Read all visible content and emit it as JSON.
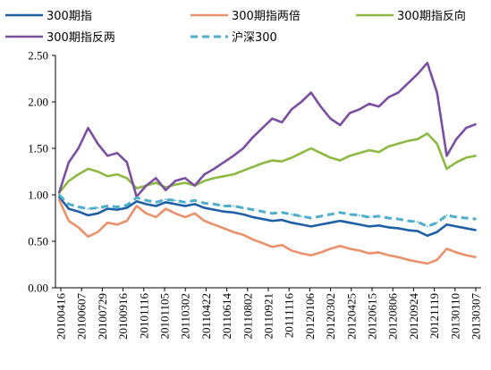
{
  "chart_data": {
    "type": "line",
    "title": "",
    "xlabel": "",
    "ylabel": "",
    "ylim": [
      0,
      2.5
    ],
    "yticks": [
      "0.00",
      "0.50",
      "1.00",
      "1.50",
      "2.00",
      "2.50"
    ],
    "grid": false,
    "legend_position": "top",
    "x_labels": [
      "20100416",
      "20100607",
      "20100729",
      "20100916",
      "20101116",
      "20101105",
      "20110302",
      "20110422",
      "20110614",
      "20110802",
      "20110921",
      "20111116",
      "20120106",
      "20120302",
      "20120425",
      "20120615",
      "20120806",
      "20120924",
      "20121119",
      "20130110",
      "20130307"
    ],
    "x": [
      "20100416",
      "20100507",
      "20100531",
      "20100618",
      "20100707",
      "20100729",
      "20100818",
      "20100916",
      "20101020",
      "20101111",
      "20101202",
      "20101222",
      "20110117",
      "20110222",
      "20110321",
      "20110411",
      "20110503",
      "20110523",
      "20110614",
      "20110705",
      "20110802",
      "20110823",
      "20110921",
      "20111020",
      "20111116",
      "20111207",
      "20120106",
      "20120208",
      "20120302",
      "20120323",
      "20120425",
      "20120515",
      "20120615",
      "20120711",
      "20120806",
      "20120827",
      "20120924",
      "20121024",
      "20121119",
      "20121212",
      "20130110",
      "20130205",
      "20130307",
      "20130329"
    ],
    "series": [
      {
        "name": "300期指",
        "color": "#1f5fa6",
        "values": [
          0.98,
          0.85,
          0.82,
          0.78,
          0.8,
          0.85,
          0.84,
          0.86,
          0.93,
          0.9,
          0.88,
          0.92,
          0.9,
          0.88,
          0.9,
          0.86,
          0.84,
          0.82,
          0.81,
          0.79,
          0.76,
          0.74,
          0.72,
          0.73,
          0.7,
          0.68,
          0.66,
          0.68,
          0.7,
          0.72,
          0.7,
          0.68,
          0.66,
          0.67,
          0.65,
          0.64,
          0.62,
          0.61,
          0.56,
          0.6,
          0.68,
          0.66,
          0.64,
          0.62
        ]
      },
      {
        "name": "300期指两倍",
        "color": "#e8916b",
        "values": [
          0.95,
          0.72,
          0.65,
          0.55,
          0.6,
          0.7,
          0.68,
          0.72,
          0.88,
          0.8,
          0.76,
          0.85,
          0.8,
          0.76,
          0.8,
          0.72,
          0.68,
          0.64,
          0.6,
          0.57,
          0.52,
          0.48,
          0.44,
          0.46,
          0.4,
          0.37,
          0.35,
          0.38,
          0.42,
          0.45,
          0.42,
          0.4,
          0.37,
          0.38,
          0.35,
          0.33,
          0.3,
          0.28,
          0.26,
          0.3,
          0.42,
          0.38,
          0.35,
          0.33
        ]
      },
      {
        "name": "300期指反向",
        "color": "#8db943",
        "values": [
          1.02,
          1.15,
          1.22,
          1.28,
          1.25,
          1.2,
          1.22,
          1.18,
          1.07,
          1.1,
          1.13,
          1.08,
          1.11,
          1.13,
          1.1,
          1.15,
          1.18,
          1.2,
          1.22,
          1.26,
          1.3,
          1.34,
          1.37,
          1.36,
          1.4,
          1.45,
          1.5,
          1.45,
          1.4,
          1.37,
          1.42,
          1.45,
          1.48,
          1.46,
          1.52,
          1.55,
          1.58,
          1.6,
          1.66,
          1.55,
          1.28,
          1.35,
          1.4,
          1.42
        ]
      },
      {
        "name": "300期指反两",
        "color": "#7b4fa0",
        "values": [
          1.02,
          1.35,
          1.5,
          1.72,
          1.55,
          1.42,
          1.45,
          1.35,
          0.98,
          1.1,
          1.18,
          1.05,
          1.15,
          1.18,
          1.1,
          1.22,
          1.28,
          1.35,
          1.42,
          1.5,
          1.62,
          1.72,
          1.82,
          1.78,
          1.92,
          2.0,
          2.1,
          1.95,
          1.82,
          1.75,
          1.88,
          1.92,
          1.98,
          1.95,
          2.05,
          2.1,
          2.2,
          2.3,
          2.42,
          2.1,
          1.42,
          1.6,
          1.72,
          1.76
        ]
      },
      {
        "name": "沪深300",
        "color": "#4eaecb",
        "dashed": true,
        "values": [
          1.0,
          0.9,
          0.87,
          0.85,
          0.86,
          0.88,
          0.87,
          0.89,
          0.97,
          0.94,
          0.92,
          0.95,
          0.94,
          0.92,
          0.94,
          0.91,
          0.9,
          0.88,
          0.88,
          0.86,
          0.84,
          0.82,
          0.8,
          0.81,
          0.79,
          0.77,
          0.75,
          0.77,
          0.79,
          0.81,
          0.79,
          0.78,
          0.76,
          0.77,
          0.75,
          0.74,
          0.72,
          0.71,
          0.66,
          0.7,
          0.78,
          0.76,
          0.75,
          0.74
        ]
      }
    ]
  }
}
